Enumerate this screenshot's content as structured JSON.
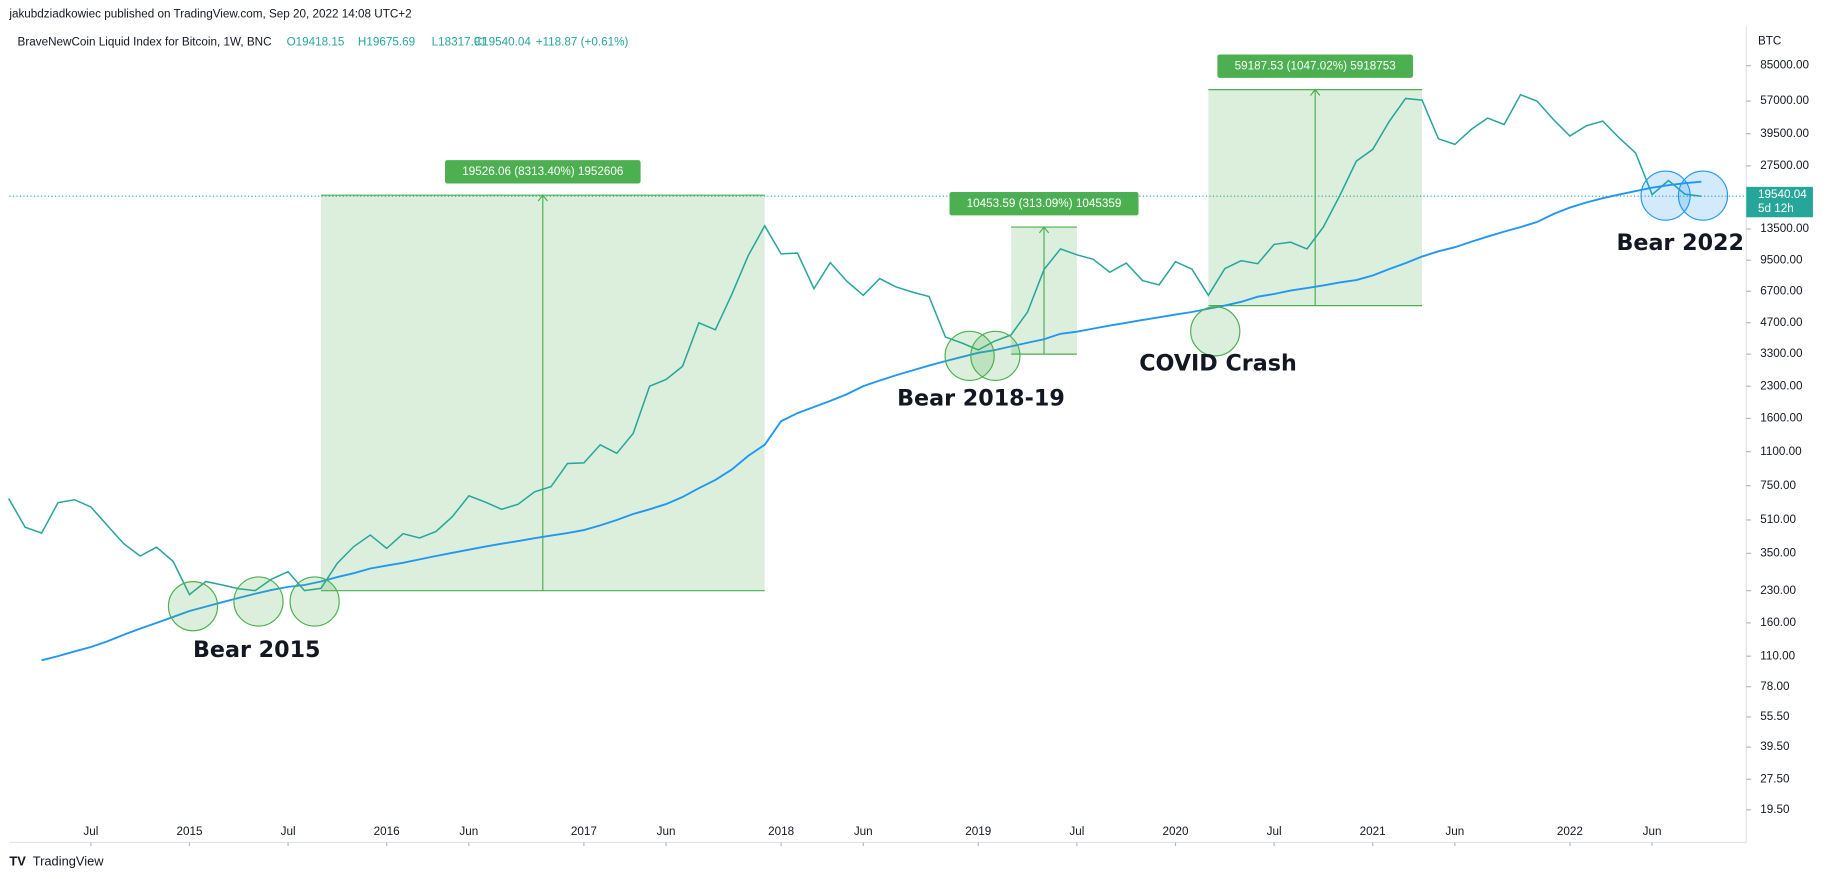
{
  "header": {
    "published": "jakubdziadkowiec published on TradingView.com, Sep 20, 2022 14:08 UTC+2",
    "symbol": "BraveNewCoin Liquid Index for Bitcoin, 1W, BNC",
    "open": "O19418.15",
    "high": "H19675.69",
    "low": "L18317.91",
    "close": "C19540.04",
    "change": "+118.87 (+0.61%)"
  },
  "footer": "TradingView",
  "chart_data": {
    "type": "line",
    "log_scale": true,
    "y_unit": "BTC",
    "x": [
      "2014-02",
      "2014-03",
      "2014-04",
      "2014-05",
      "2014-06",
      "2014-07",
      "2014-08",
      "2014-09",
      "2014-10",
      "2014-11",
      "2014-12",
      "2015-01",
      "2015-02",
      "2015-03",
      "2015-04",
      "2015-05",
      "2015-06",
      "2015-07",
      "2015-08",
      "2015-09",
      "2015-10",
      "2015-11",
      "2015-12",
      "2016-01",
      "2016-02",
      "2016-03",
      "2016-04",
      "2016-05",
      "2016-06",
      "2016-07",
      "2016-08",
      "2016-09",
      "2016-10",
      "2016-11",
      "2016-12",
      "2017-01",
      "2017-02",
      "2017-03",
      "2017-04",
      "2017-05",
      "2017-06",
      "2017-07",
      "2017-08",
      "2017-09",
      "2017-10",
      "2017-11",
      "2017-12",
      "2018-01",
      "2018-02",
      "2018-03",
      "2018-04",
      "2018-05",
      "2018-06",
      "2018-07",
      "2018-08",
      "2018-09",
      "2018-10",
      "2018-11",
      "2018-12",
      "2019-01",
      "2019-02",
      "2019-03",
      "2019-04",
      "2019-05",
      "2019-06",
      "2019-07",
      "2019-08",
      "2019-09",
      "2019-10",
      "2019-11",
      "2019-12",
      "2020-01",
      "2020-02",
      "2020-03",
      "2020-04",
      "2020-05",
      "2020-06",
      "2020-07",
      "2020-08",
      "2020-09",
      "2020-10",
      "2020-11",
      "2020-12",
      "2021-01",
      "2021-02",
      "2021-03",
      "2021-04",
      "2021-05",
      "2021-06",
      "2021-07",
      "2021-08",
      "2021-09",
      "2021-10",
      "2021-11",
      "2021-12",
      "2022-01",
      "2022-02",
      "2022-03",
      "2022-04",
      "2022-05",
      "2022-06",
      "2022-07",
      "2022-08",
      "2022-09"
    ],
    "series": [
      {
        "name": "Price",
        "color": "#26a69a",
        "values": [
          650,
          470,
          440,
          620,
          640,
          590,
          480,
          390,
          340,
          375,
          320,
          220,
          255,
          245,
          235,
          230,
          262,
          285,
          230,
          236,
          313,
          378,
          430,
          370,
          437,
          416,
          448,
          530,
          670,
          624,
          575,
          609,
          700,
          742,
          963,
          970,
          1190,
          1080,
          1350,
          2300,
          2480,
          2875,
          4700,
          4340,
          6450,
          10000,
          14000,
          10200,
          10300,
          6900,
          9240,
          7500,
          6400,
          7730,
          7030,
          6630,
          6320,
          4000,
          3740,
          3460,
          3820,
          4100,
          5300,
          8550,
          10800,
          10100,
          9600,
          8300,
          9200,
          7550,
          7200,
          9350,
          8600,
          6400,
          8650,
          9450,
          9140,
          11350,
          11650,
          10780,
          13800,
          19700,
          29000,
          33100,
          45200,
          58800,
          57700,
          37300,
          35000,
          41500,
          47100,
          43800,
          61300,
          57000,
          46300,
          38500,
          43200,
          45500,
          37700,
          31800,
          19900,
          23300,
          20000,
          19540.04
        ]
      },
      {
        "name": "Moving average",
        "color": "#2196f3",
        "values": [
          null,
          null,
          105,
          110,
          116,
          122,
          130,
          140,
          150,
          160,
          171,
          183,
          192,
          202,
          212,
          222,
          232,
          240,
          245,
          255,
          268,
          280,
          295,
          305,
          315,
          327,
          340,
          352,
          365,
          378,
          390,
          402,
          415,
          428,
          440,
          455,
          480,
          510,
          545,
          575,
          610,
          660,
          730,
          800,
          900,
          1050,
          1190,
          1550,
          1700,
          1820,
          1950,
          2100,
          2300,
          2450,
          2600,
          2750,
          2900,
          3050,
          3200,
          3350,
          3450,
          3600,
          3750,
          3900,
          4150,
          4250,
          4400,
          4550,
          4700,
          4850,
          5000,
          5150,
          5300,
          5500,
          5700,
          5950,
          6300,
          6500,
          6750,
          6950,
          7150,
          7400,
          7600,
          8000,
          8600,
          9200,
          9900,
          10500,
          11000,
          11700,
          12400,
          13100,
          13800,
          14600,
          16000,
          17200,
          18200,
          19100,
          19900,
          20700,
          21500,
          22100,
          22600,
          23000
        ]
      }
    ],
    "ylim": [
      13.5,
      132800
    ],
    "yticks": [
      {
        "value": 85000,
        "label": "85000.00"
      },
      {
        "value": 57000,
        "label": "57000.00"
      },
      {
        "value": 39500,
        "label": "39500.00"
      },
      {
        "value": 27500,
        "label": "27500.00"
      },
      {
        "value": 13500,
        "label": "13500.00"
      },
      {
        "value": 9500,
        "label": "9500.00"
      },
      {
        "value": 6700,
        "label": "6700.00"
      },
      {
        "value": 4700,
        "label": "4700.00"
      },
      {
        "value": 3300,
        "label": "3300.00"
      },
      {
        "value": 2300,
        "label": "2300.00"
      },
      {
        "value": 1600,
        "label": "1600.00"
      },
      {
        "value": 1100,
        "label": "1100.00"
      },
      {
        "value": 750,
        "label": "750.00"
      },
      {
        "value": 510,
        "label": "510.00"
      },
      {
        "value": 350,
        "label": "350.00"
      },
      {
        "value": 230,
        "label": "230.00"
      },
      {
        "value": 160,
        "label": "160.00"
      },
      {
        "value": 110,
        "label": "110.00"
      },
      {
        "value": 78,
        "label": "78.00"
      },
      {
        "value": 55.5,
        "label": "55.50"
      },
      {
        "value": 39.5,
        "label": "39.50"
      },
      {
        "value": 27.5,
        "label": "27.50"
      },
      {
        "value": 19.5,
        "label": "19.50"
      }
    ],
    "xticks": [
      {
        "value": "2014-07",
        "label": "Jul"
      },
      {
        "value": "2015-01",
        "label": "2015"
      },
      {
        "value": "2015-07",
        "label": "Jul"
      },
      {
        "value": "2016-01",
        "label": "2016"
      },
      {
        "value": "2016-06",
        "label": "Jun"
      },
      {
        "value": "2017-01",
        "label": "2017"
      },
      {
        "value": "2017-06",
        "label": "Jun"
      },
      {
        "value": "2018-01",
        "label": "2018"
      },
      {
        "value": "2018-06",
        "label": "Jun"
      },
      {
        "value": "2019-01",
        "label": "2019"
      },
      {
        "value": "2019-07",
        "label": "Jul"
      },
      {
        "value": "2020-01",
        "label": "2020"
      },
      {
        "value": "2020-07",
        "label": "Jul"
      },
      {
        "value": "2021-01",
        "label": "2021"
      },
      {
        "value": "2021-06",
        "label": "Jun"
      },
      {
        "value": "2022-01",
        "label": "2022"
      },
      {
        "value": "2022-06",
        "label": "Jun"
      }
    ],
    "last": {
      "value": 19540.04,
      "countdown": "5d 12h"
    },
    "measures": [
      {
        "label": "19526.06 (8313.40%) 1952606",
        "start": "2015-09",
        "end": "2017-12",
        "low": 230,
        "high": 19760
      },
      {
        "label": "10453.59 (313.09%) 1045359",
        "start": "2019-03",
        "end": "2019-07",
        "low": 3300,
        "high": 13800
      },
      {
        "label": "59187.53 (1047.02%) 5918753",
        "start": "2020-03",
        "end": "2021-04",
        "low": 5700,
        "high": 64900
      }
    ],
    "annotations": [
      "Bear 2015",
      "Bear 2018-19",
      "COVID Crash",
      "Bear 2022"
    ]
  }
}
